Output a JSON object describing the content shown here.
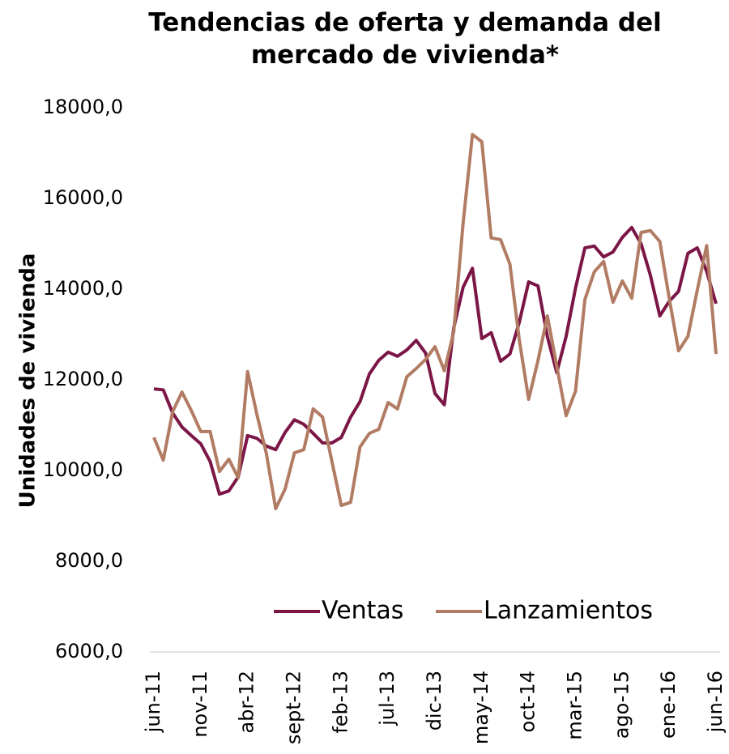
{
  "chart_data": {
    "type": "line",
    "title": "Tendencias de oferta y demanda del mercado de vivienda*",
    "y_label": "Unidades de vivienda",
    "categories": [
      "jun-11",
      null,
      null,
      null,
      null,
      "nov-11",
      null,
      null,
      null,
      null,
      "abr-12",
      null,
      null,
      null,
      null,
      "sept-12",
      null,
      null,
      null,
      null,
      "feb-13",
      null,
      null,
      null,
      null,
      "jul-13",
      null,
      null,
      null,
      null,
      "dic-13",
      null,
      null,
      null,
      null,
      "may-14",
      null,
      null,
      null,
      null,
      "oct-14",
      null,
      null,
      null,
      null,
      "mar-15",
      null,
      null,
      null,
      null,
      "ago-15",
      null,
      null,
      null,
      null,
      "ene-16",
      null,
      null,
      null,
      null,
      "jun-16"
    ],
    "series": [
      {
        "name": "Ventas",
        "color": "#7b1646",
        "values": [
          11800,
          11780,
          11270,
          10960,
          10770,
          10590,
          10200,
          9480,
          9550,
          9860,
          10770,
          10710,
          10540,
          10460,
          10840,
          11120,
          11020,
          10820,
          10610,
          10610,
          10730,
          11180,
          11520,
          12130,
          12430,
          12610,
          12520,
          12660,
          12870,
          12590,
          11700,
          11450,
          13140,
          14040,
          14460,
          12910,
          13040,
          12410,
          12570,
          13270,
          14160,
          14070,
          12950,
          12160,
          12960,
          14020,
          14910,
          14950,
          14710,
          14820,
          15140,
          15360,
          15000,
          14300,
          13410,
          13730,
          13950,
          14790,
          14910,
          14390,
          13680
        ]
      },
      {
        "name": "Lanzamientos",
        "color": "#b27c64",
        "values": [
          10730,
          10230,
          11300,
          11730,
          11320,
          10860,
          10860,
          9980,
          10250,
          9840,
          12180,
          11230,
          10380,
          9160,
          9590,
          10390,
          10460,
          11360,
          11180,
          10200,
          9230,
          9300,
          10520,
          10820,
          10910,
          11500,
          11360,
          12070,
          12250,
          12450,
          12730,
          12200,
          13050,
          15450,
          17410,
          17250,
          15130,
          15090,
          14550,
          12880,
          11570,
          12430,
          13410,
          12300,
          11210,
          11750,
          13770,
          14380,
          14610,
          13710,
          14180,
          13800,
          15250,
          15290,
          15050,
          13800,
          12640,
          12960,
          13980,
          14960,
          12570
        ]
      }
    ],
    "ylim": [
      6000,
      18000
    ],
    "yticks": [
      {
        "value": 6000,
        "label": "6000,0"
      },
      {
        "value": 8000,
        "label": "8000,0"
      },
      {
        "value": 10000,
        "label": "10000,0"
      },
      {
        "value": 12000,
        "label": "12000,0"
      },
      {
        "value": 14000,
        "label": "14000,0"
      },
      {
        "value": 16000,
        "label": "16000,0"
      },
      {
        "value": 18000,
        "label": "18000,0"
      }
    ],
    "grid": false,
    "legend": "bottom"
  }
}
